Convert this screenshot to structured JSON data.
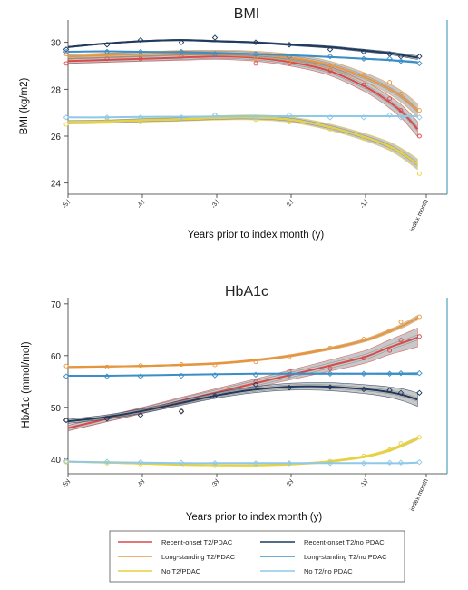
{
  "chart_data": [
    {
      "type": "line",
      "title": "BMI",
      "ylabel": "BMI (kg/m2)",
      "xlabel": "Years prior to index month (y)",
      "x_ticks": [
        "-5y",
        "-4y",
        "-3y",
        "-2y",
        "-1y",
        "index month"
      ],
      "y_ticks": [
        24,
        26,
        28,
        30
      ],
      "xlim": [
        -5,
        0
      ],
      "ylim": [
        23.6,
        30.8
      ],
      "grid": false,
      "series": [
        {
          "name": "Recent-onset T2/PDAC",
          "color": "#d94a4a",
          "x": [
            -5,
            -4.5,
            -4,
            -3.5,
            -3,
            -2.5,
            -2,
            -1.5,
            -1,
            -0.7,
            -0.5,
            -0.3
          ],
          "values": [
            29.2,
            29.25,
            29.3,
            29.35,
            29.4,
            29.35,
            29.15,
            28.8,
            28.1,
            27.5,
            27.0,
            26.3
          ],
          "band": 0.25,
          "points": [
            29.1,
            29.3,
            29.3,
            29.4,
            29.5,
            29.1,
            29.1,
            28.8,
            28.2,
            27.6,
            27.1,
            26.0
          ]
        },
        {
          "name": "Long-standing T2/PDAC",
          "color": "#e8963c",
          "x": [
            -5,
            -4.5,
            -4,
            -3.5,
            -3,
            -2.5,
            -2,
            -1.5,
            -1,
            -0.7,
            -0.5,
            -0.3
          ],
          "values": [
            29.4,
            29.45,
            29.5,
            29.55,
            29.55,
            29.5,
            29.35,
            29.05,
            28.5,
            28.05,
            27.65,
            27.1
          ],
          "band": 0.22,
          "points": [
            29.5,
            29.6,
            29.5,
            29.6,
            29.5,
            29.3,
            29.2,
            29.0,
            28.6,
            28.3,
            27.8,
            27.1
          ]
        },
        {
          "name": "No T2/PDAC",
          "color": "#e8d23c",
          "x": [
            -5,
            -4.5,
            -4,
            -3.5,
            -3,
            -2.5,
            -2,
            -1.5,
            -1,
            -0.7,
            -0.5,
            -0.3
          ],
          "values": [
            26.6,
            26.62,
            26.68,
            26.72,
            26.78,
            26.8,
            26.7,
            26.4,
            25.95,
            25.6,
            25.25,
            24.8
          ],
          "band": 0.18,
          "points": [
            26.5,
            26.7,
            26.6,
            26.8,
            26.9,
            26.7,
            26.6,
            26.3,
            25.9,
            25.5,
            25.3,
            24.4
          ]
        },
        {
          "name": "Recent-onset T2/no PDAC",
          "color": "#1f3a5c",
          "x": [
            -5,
            -4.5,
            -4,
            -3.5,
            -3,
            -2.5,
            -2,
            -1.5,
            -1,
            -0.7,
            -0.5,
            -0.3
          ],
          "values": [
            29.8,
            29.95,
            30.05,
            30.1,
            30.05,
            30.0,
            29.9,
            29.8,
            29.65,
            29.55,
            29.45,
            29.35
          ],
          "band": 0.06,
          "points": [
            29.7,
            29.9,
            30.1,
            30.0,
            30.2,
            30.0,
            29.9,
            29.7,
            29.6,
            29.5,
            29.4,
            29.4
          ]
        },
        {
          "name": "Long-standing T2/no PDAC",
          "color": "#3b8fc7",
          "x": [
            -5,
            -4.5,
            -4,
            -3.5,
            -3,
            -2.5,
            -2,
            -1.5,
            -1,
            -0.7,
            -0.5,
            -0.3
          ],
          "values": [
            29.6,
            29.62,
            29.6,
            29.58,
            29.55,
            29.5,
            29.45,
            29.38,
            29.3,
            29.25,
            29.2,
            29.15
          ],
          "band": 0.03,
          "points": [
            29.6,
            29.6,
            29.6,
            29.6,
            29.5,
            29.5,
            29.4,
            29.4,
            29.3,
            29.3,
            29.2,
            29.1
          ]
        },
        {
          "name": "No T2/no PDAC",
          "color": "#8fc8e8",
          "x": [
            -5,
            -4.5,
            -4,
            -3.5,
            -3,
            -2.5,
            -2,
            -1.5,
            -1,
            -0.7,
            -0.5,
            -0.3
          ],
          "values": [
            26.8,
            26.8,
            26.82,
            26.83,
            26.84,
            26.85,
            26.85,
            26.85,
            26.85,
            26.85,
            26.85,
            26.85
          ],
          "band": 0.02,
          "points": [
            26.8,
            26.8,
            26.8,
            26.8,
            26.9,
            26.8,
            26.9,
            26.8,
            26.8,
            26.9,
            26.8,
            26.8
          ]
        }
      ]
    },
    {
      "type": "line",
      "title": "HbA1c",
      "ylabel": "HbA1c (mmol/mol)",
      "xlabel": "Years prior to index month (y)",
      "x_ticks": [
        "-5y",
        "-4y",
        "-3y",
        "-2y",
        "-1y",
        "index month"
      ],
      "y_ticks": [
        40,
        50,
        60,
        70
      ],
      "xlim": [
        -5,
        0
      ],
      "ylim": [
        37.5,
        70.5
      ],
      "grid": false,
      "series": [
        {
          "name": "Recent-onset T2/PDAC",
          "color": "#d94a4a",
          "x": [
            -5,
            -4.5,
            -4,
            -3.5,
            -3,
            -2.5,
            -2,
            -1.5,
            -1,
            -0.7,
            -0.5,
            -0.3
          ],
          "values": [
            46.0,
            47.7,
            49.4,
            51.2,
            52.9,
            54.6,
            56.3,
            58.0,
            59.8,
            61.5,
            62.5,
            63.5
          ],
          "band": 1.4,
          "points": [
            47.5,
            48.0,
            49.0,
            49.3,
            52.5,
            55.0,
            57.0,
            57.5,
            59.5,
            61.0,
            63.0,
            63.7
          ]
        },
        {
          "name": "Long-standing T2/PDAC",
          "color": "#e8963c",
          "x": [
            -5,
            -4.5,
            -4,
            -3.5,
            -3,
            -2.5,
            -2,
            -1.5,
            -1,
            -0.7,
            -0.5,
            -0.3
          ],
          "values": [
            57.8,
            57.9,
            58.0,
            58.2,
            58.5,
            59.1,
            60.0,
            61.3,
            63.0,
            64.6,
            65.8,
            67.3
          ],
          "band": 0.35,
          "points": [
            58.0,
            57.8,
            58.1,
            58.3,
            58.2,
            58.8,
            59.8,
            61.5,
            63.2,
            64.8,
            66.5,
            67.5
          ]
        },
        {
          "name": "No T2/PDAC",
          "color": "#e8d23c",
          "x": [
            -5,
            -4.5,
            -4,
            -3.5,
            -3,
            -2.5,
            -2,
            -1.5,
            -1,
            -0.7,
            -0.5,
            -0.3
          ],
          "values": [
            39.5,
            39.3,
            39.1,
            38.9,
            38.8,
            38.8,
            39.0,
            39.5,
            40.5,
            41.6,
            42.7,
            44.0
          ],
          "band": 0.25,
          "points": [
            39.4,
            39.2,
            39.0,
            38.8,
            38.7,
            38.9,
            39.1,
            39.6,
            40.6,
            41.8,
            43.0,
            44.2
          ]
        },
        {
          "name": "Recent-onset T2/no PDAC",
          "color": "#1f3a5c",
          "x": [
            -5,
            -4.5,
            -4,
            -3.5,
            -3,
            -2.5,
            -2,
            -1.5,
            -1,
            -0.7,
            -0.5,
            -0.3
          ],
          "values": [
            47.3,
            48.1,
            49.3,
            50.8,
            52.3,
            53.4,
            54.0,
            54.0,
            53.5,
            53.0,
            52.4,
            51.5
          ],
          "band": 1.0,
          "points": [
            47.5,
            47.8,
            48.5,
            49.2,
            52.2,
            54.4,
            53.8,
            53.9,
            53.5,
            53.3,
            52.8,
            52.8
          ]
        },
        {
          "name": "Long-standing T2/no PDAC",
          "color": "#3b8fc7",
          "x": [
            -5,
            -4.5,
            -4,
            -3.5,
            -3,
            -2.5,
            -2,
            -1.5,
            -1,
            -0.7,
            -0.5,
            -0.3
          ],
          "values": [
            56.1,
            56.1,
            56.2,
            56.3,
            56.4,
            56.5,
            56.5,
            56.5,
            56.5,
            56.5,
            56.5,
            56.5
          ],
          "band": 0.15,
          "points": [
            56.0,
            56.0,
            56.0,
            56.1,
            56.2,
            56.3,
            56.3,
            56.5,
            56.5,
            56.5,
            56.6,
            56.6
          ]
        },
        {
          "name": "No T2/no PDAC",
          "color": "#8fc8e8",
          "x": [
            -5,
            -4.5,
            -4,
            -3.5,
            -3,
            -2.5,
            -2,
            -1.5,
            -1,
            -0.7,
            -0.5,
            -0.3
          ],
          "values": [
            39.5,
            39.4,
            39.3,
            39.2,
            39.2,
            39.2,
            39.2,
            39.2,
            39.2,
            39.2,
            39.2,
            39.3
          ],
          "band": 0.08,
          "points": [
            39.6,
            39.5,
            39.4,
            39.3,
            39.2,
            39.2,
            39.2,
            39.2,
            39.2,
            39.3,
            39.3,
            39.4
          ]
        }
      ]
    }
  ],
  "legend": {
    "placement": "bottom",
    "items": [
      {
        "label": "Recent-onset T2/PDAC",
        "color": "#d94a4a"
      },
      {
        "label": "Recent-onset T2/no PDAC",
        "color": "#1f3a5c"
      },
      {
        "label": "Long-standing T2/PDAC",
        "color": "#e8963c"
      },
      {
        "label": "Long-standing T2/no PDAC",
        "color": "#3b8fc7"
      },
      {
        "label": "No T2/PDAC",
        "color": "#e8d23c"
      },
      {
        "label": "No T2/no PDAC",
        "color": "#8fc8e8"
      }
    ]
  }
}
